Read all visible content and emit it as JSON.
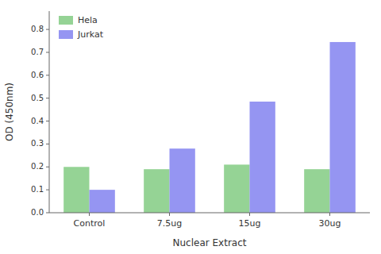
{
  "chart_data": {
    "type": "bar",
    "categories": [
      "Control",
      "7.5ug",
      "15ug",
      "30ug"
    ],
    "series": [
      {
        "name": "Hela",
        "color": "#7bc87b",
        "values": [
          0.2,
          0.19,
          0.21,
          0.19
        ]
      },
      {
        "name": "Jurkat",
        "color": "#7b7bef",
        "values": [
          0.1,
          0.28,
          0.485,
          0.745
        ]
      }
    ],
    "x_label": "Nuclear Extract",
    "y_label": "OD (450nm)",
    "ylim": [
      0.0,
      0.88
    ],
    "yticks": [
      {
        "value": 0.0,
        "label": "0.0"
      },
      0.1,
      0.2,
      0.3,
      0.4,
      0.5,
      0.6,
      0.7,
      0.8
    ],
    "legend": "upper left",
    "grid": false
  }
}
